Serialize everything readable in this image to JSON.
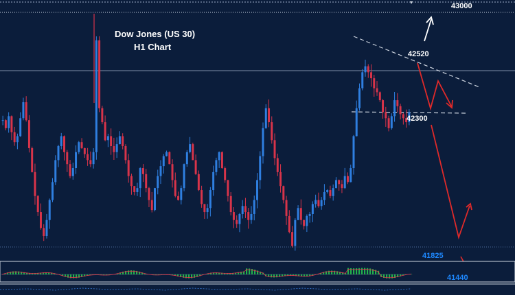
{
  "header": {
    "title_line1": "Dow Jones (US 30)",
    "title_line2": "H1 Chart"
  },
  "colors": {
    "background": "#0b1d3b",
    "bull_candle": "#2f7fe0",
    "bear_candle": "#d8344a",
    "annotation_arrow_up": "#ffffff",
    "annotation_arrow_down": "#e02a2a",
    "price_label_blue": "#1e88ff",
    "price_label_white": "#ffffff",
    "oscillator_green": "#22b14c"
  },
  "chart_data": {
    "type": "candlestick",
    "title": "Dow Jones (US 30) H1 Chart",
    "xlabel": "",
    "ylabel": "",
    "ylim": [
      41825,
      43000
    ],
    "grid": false,
    "levels": [
      {
        "value": 43000,
        "label": "43000",
        "color": "white",
        "style": "dotted"
      },
      {
        "value": 42520,
        "label": "42520",
        "color": "white",
        "style": "solid"
      },
      {
        "value": 42300,
        "label": "42300",
        "color": "white",
        "style": "dashed"
      },
      {
        "value": 41825,
        "label": "41825",
        "color": "blue",
        "style": "dotted"
      },
      {
        "value": 41440,
        "label": "41440",
        "color": "blue",
        "style": "none"
      }
    ],
    "price_path_approx": [
      42460,
      42420,
      42480,
      42400,
      42350,
      42380,
      42470,
      42550,
      42460,
      42320,
      42200,
      42080,
      42000,
      41920,
      41880,
      41960,
      42060,
      42150,
      42260,
      42330,
      42380,
      42300,
      42240,
      42180,
      42220,
      42300,
      42350,
      42320,
      42290,
      42260,
      42240,
      42300,
      42860,
      42520,
      42450,
      42360,
      42380,
      42330,
      42300,
      42340,
      42380,
      42330,
      42260,
      42180,
      42130,
      42100,
      42120,
      42220,
      42190,
      42120,
      42060,
      42010,
      42120,
      42180,
      42230,
      42280,
      42300,
      42240,
      42160,
      42080,
      42060,
      42120,
      42240,
      42300,
      42340,
      42260,
      42190,
      42110,
      42040,
      42000,
      42020,
      42110,
      42200,
      42260,
      42300,
      42220,
      42160,
      42080,
      42000,
      41960,
      41940,
      41990,
      42030,
      42000,
      41960,
      41990,
      42060,
      42160,
      42280,
      42420,
      42520,
      42450,
      42360,
      42270,
      42200,
      42130,
      42060,
      41980,
      41900,
      41830,
      41960,
      42020,
      41960,
      41930,
      41980,
      41990,
      42040,
      42060,
      42030,
      42060,
      42100,
      42110,
      42080,
      42120,
      42160,
      42140,
      42120,
      42180,
      42150,
      42220,
      42380,
      42520,
      42620,
      42700,
      42730,
      42700,
      42670,
      42620,
      42600,
      42560,
      42500,
      42470,
      42420,
      42480,
      42560,
      42530,
      42490,
      42470,
      42450,
      42500
    ],
    "annotations": [
      {
        "type": "arrow",
        "direction": "up",
        "color": "white",
        "target": "43000"
      },
      {
        "type": "zigzag-arrow",
        "direction": "down",
        "color": "red",
        "target": "42300"
      },
      {
        "type": "zigzag-arrow",
        "direction": "down-then-up",
        "color": "red",
        "target": "41825"
      },
      {
        "type": "arrow",
        "direction": "down",
        "color": "red",
        "target": "41440"
      }
    ],
    "pattern": "descending triangle"
  }
}
